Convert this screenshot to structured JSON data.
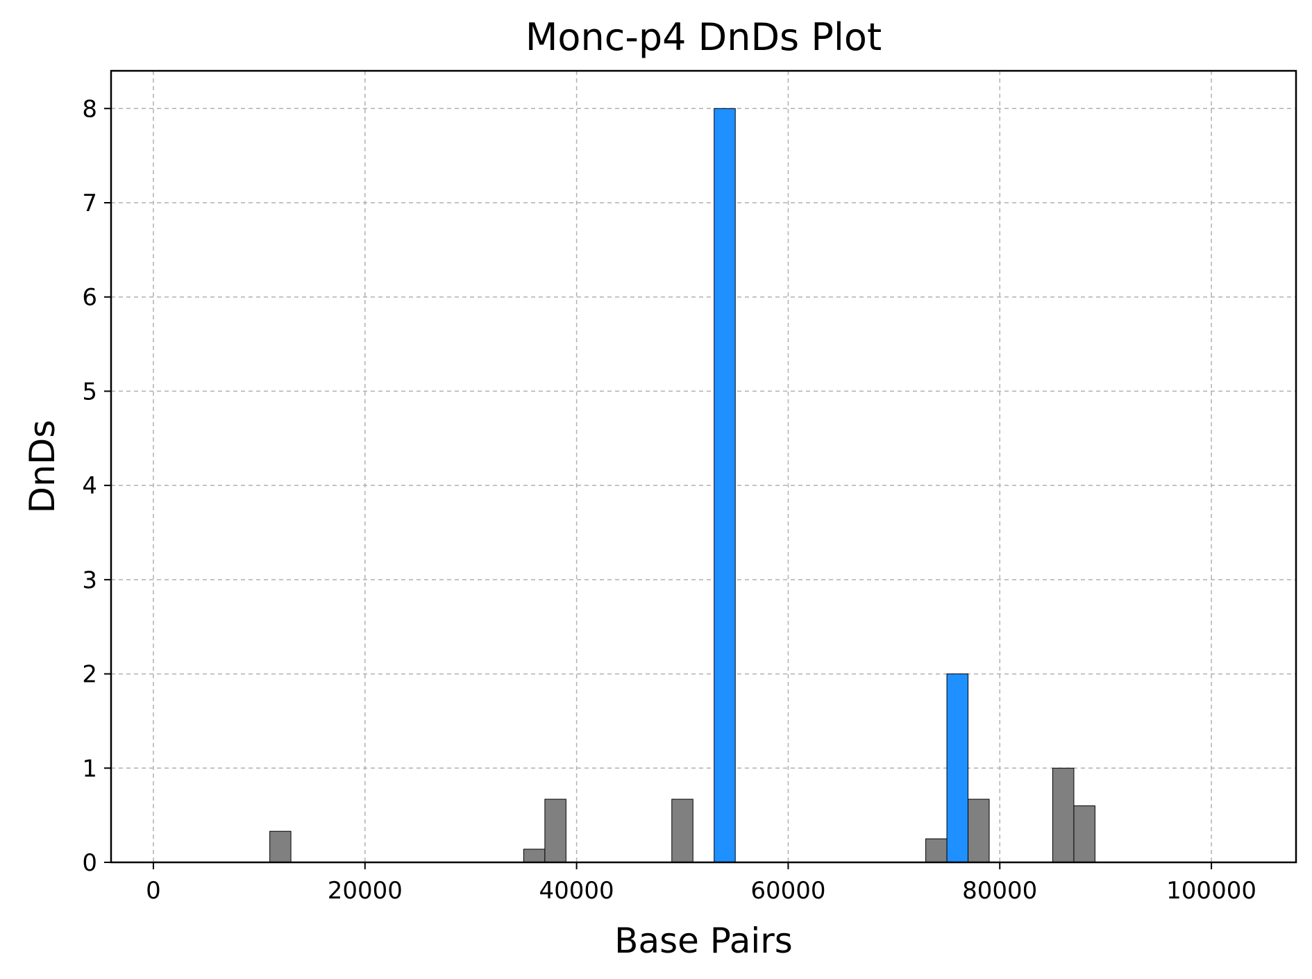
{
  "chart_data": {
    "type": "bar",
    "title": "Monc-p4 DnDs Plot",
    "xlabel": "Base Pairs",
    "ylabel": "DnDs",
    "xlim": [
      -4000,
      108000
    ],
    "ylim": [
      0,
      8.4
    ],
    "xticks": [
      0,
      20000,
      40000,
      60000,
      80000,
      100000
    ],
    "xtick_labels": [
      "0",
      "20000",
      "40000",
      "60000",
      "80000",
      "100000"
    ],
    "yticks": [
      0,
      1,
      2,
      3,
      4,
      5,
      6,
      7,
      8
    ],
    "ytick_labels": [
      "0",
      "1",
      "2",
      "3",
      "4",
      "5",
      "6",
      "7",
      "8"
    ],
    "bin_width": 2000,
    "grid": true,
    "colors": {
      "highlight": "#1e90ff",
      "normal": "#808080"
    },
    "bars": [
      {
        "x": 12000,
        "value": 0.33,
        "highlight": false
      },
      {
        "x": 36000,
        "value": 0.14,
        "highlight": false
      },
      {
        "x": 38000,
        "value": 0.67,
        "highlight": false
      },
      {
        "x": 50000,
        "value": 0.67,
        "highlight": false
      },
      {
        "x": 54000,
        "value": 8.0,
        "highlight": true
      },
      {
        "x": 74000,
        "value": 0.25,
        "highlight": false
      },
      {
        "x": 76000,
        "value": 2.0,
        "highlight": true
      },
      {
        "x": 78000,
        "value": 0.67,
        "highlight": false
      },
      {
        "x": 86000,
        "value": 1.0,
        "highlight": false
      },
      {
        "x": 88000,
        "value": 0.6,
        "highlight": false
      }
    ]
  }
}
